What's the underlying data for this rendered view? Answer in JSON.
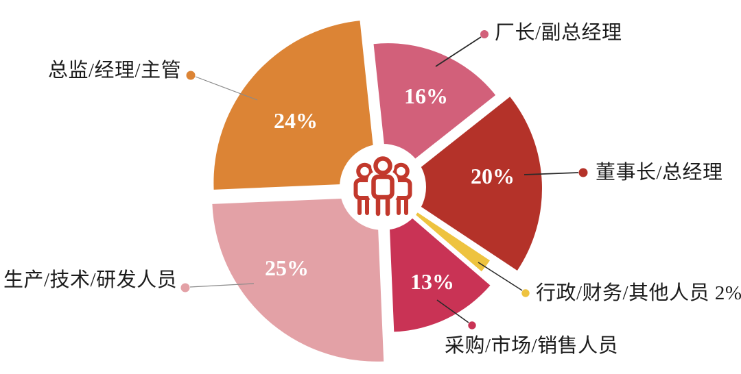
{
  "chart_data": {
    "type": "pie",
    "description": "Exploded pie chart of respondent job roles with center people icon",
    "unit": "%",
    "slices": [
      {
        "label": "厂长/副总经理",
        "value": 16,
        "pct_label": "16%",
        "color": "#d2607a",
        "callout": "厂长/副总经理"
      },
      {
        "label": "董事长/总经理",
        "value": 20,
        "pct_label": "20%",
        "color": "#b43229",
        "callout": "董事长/总经理"
      },
      {
        "label": "行政/财务/其他人员",
        "value": 2,
        "pct_label": "2%",
        "color": "#eec33f",
        "callout": "行政/财务/其他人员 2%"
      },
      {
        "label": "采购/市场/销售人员",
        "value": 13,
        "pct_label": "13%",
        "color": "#c93355",
        "callout": "采购/市场/销售人员"
      },
      {
        "label": "生产/技术/研发人员",
        "value": 25,
        "pct_label": "25%",
        "color": "#e3a1a6",
        "callout": "生产/技术/研发人员"
      },
      {
        "label": "总监/经理/主管",
        "value": 24,
        "pct_label": "24%",
        "color": "#dc8435",
        "callout": "总监/经理/主管"
      }
    ],
    "layout": {
      "style": "exploded-variable-radius",
      "direction": "clockwise",
      "start_angle_deg": -6,
      "legend": "none",
      "center_icon": "people-group",
      "icon_color": "#c2382c",
      "percent_label_color": "#ffffff",
      "background": "#ffffff"
    }
  }
}
